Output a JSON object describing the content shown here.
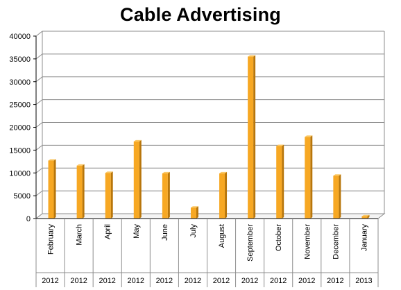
{
  "chart_data": {
    "type": "bar",
    "title": "Cable Advertising",
    "xlabel": "",
    "ylabel": "",
    "ylim": [
      0,
      40000
    ],
    "yticks": [
      0,
      5000,
      10000,
      15000,
      20000,
      25000,
      30000,
      35000,
      40000
    ],
    "categories": [
      {
        "month": "February",
        "year": "2012"
      },
      {
        "month": "March",
        "year": "2012"
      },
      {
        "month": "April",
        "year": "2012"
      },
      {
        "month": "May",
        "year": "2012"
      },
      {
        "month": "June",
        "year": "2012"
      },
      {
        "month": "July",
        "year": "2012"
      },
      {
        "month": "August",
        "year": "2012"
      },
      {
        "month": "September",
        "year": "2012"
      },
      {
        "month": "October",
        "year": "2012"
      },
      {
        "month": "November",
        "year": "2012"
      },
      {
        "month": "December",
        "year": "2012"
      },
      {
        "month": "January",
        "year": "2013"
      }
    ],
    "values": [
      12700,
      11600,
      10000,
      16900,
      9900,
      2400,
      9900,
      35500,
      15900,
      17900,
      9400,
      500
    ],
    "grid": true,
    "legend": "none",
    "colors": {
      "bar_front": "#F7A823",
      "bar_side": "#B8760B",
      "bar_top": "#FAC867",
      "grid": "#8C8C8C",
      "wall": "#ffffff"
    }
  }
}
